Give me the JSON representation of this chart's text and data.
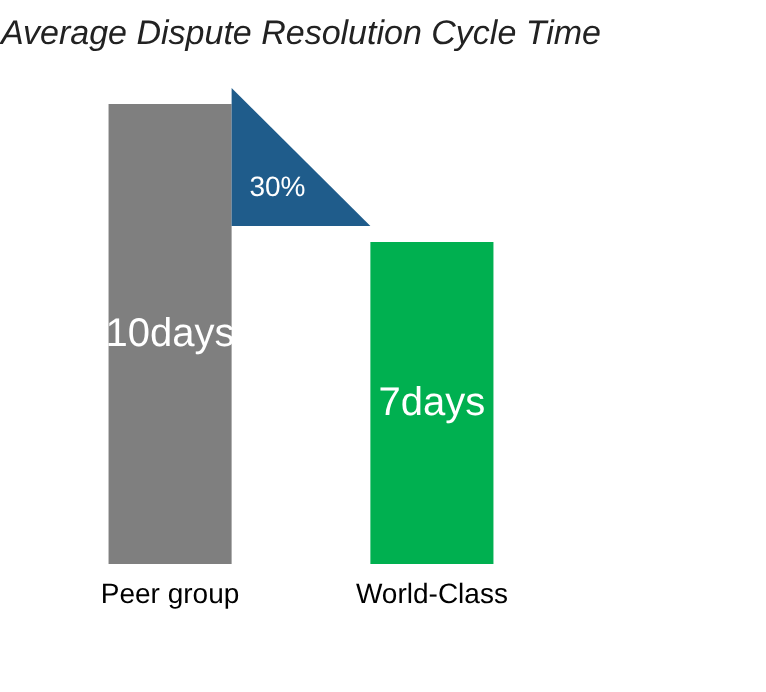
{
  "chart_data": {
    "type": "bar",
    "title": "Average Dispute Resolution Cycle Time",
    "categories": [
      "Peer group",
      "World-Class"
    ],
    "values": [
      10,
      7
    ],
    "colors": [
      "#7f7f7f",
      "#00b050"
    ],
    "value_labels": [
      "10days",
      "7days"
    ],
    "annotations": [
      "30%"
    ]
  }
}
